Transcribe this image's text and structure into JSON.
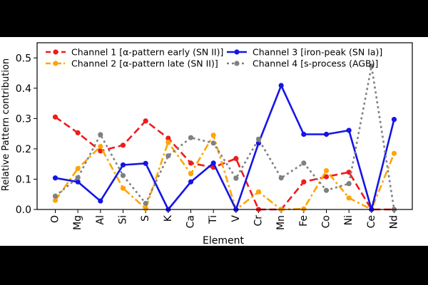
{
  "chart_data": {
    "type": "line",
    "title": "",
    "xlabel": "Element",
    "ylabel": "Relative Pattern contribution",
    "categories": [
      "O",
      "Mg",
      "Al",
      "Si",
      "S",
      "K",
      "Ca",
      "Ti",
      "V",
      "Cr",
      "Mn",
      "Fe",
      "Co",
      "Ni",
      "Ce",
      "Nd"
    ],
    "ylim": [
      0,
      0.55
    ],
    "yticks": [
      "0.0",
      "0.1",
      "0.2",
      "0.3",
      "0.4",
      "0.5"
    ],
    "grid": false,
    "legend_position": "top",
    "series": [
      {
        "name": "Channel 1 [α-pattern early (SN II)]",
        "color": "#ee1c1c",
        "dash": "dashed",
        "values": [
          0.305,
          0.253,
          0.193,
          0.212,
          0.292,
          0.235,
          0.153,
          0.139,
          0.168,
          0.0,
          0.0,
          0.091,
          0.108,
          0.123,
          0.0,
          0.0
        ]
      },
      {
        "name": "Channel 2 [α-pattern late (SN II)]",
        "color": "#ffa500",
        "dash": "dashdot",
        "values": [
          0.03,
          0.135,
          0.208,
          0.07,
          0.003,
          0.222,
          0.118,
          0.245,
          0.0,
          0.058,
          0.0,
          0.002,
          0.128,
          0.038,
          0.0,
          0.185
        ]
      },
      {
        "name": "Channel 3 [iron-peak (SN Ia)]",
        "color": "#1515e5",
        "dash": "solid",
        "values": [
          0.104,
          0.091,
          0.028,
          0.147,
          0.152,
          0.0,
          0.091,
          0.153,
          0.0,
          0.219,
          0.409,
          0.248,
          0.248,
          0.261,
          0.0,
          0.297
        ]
      },
      {
        "name": "Channel 4 [s-process (AGB)]",
        "color": "#808080",
        "dash": "dotted",
        "values": [
          0.044,
          0.105,
          0.247,
          0.112,
          0.02,
          0.177,
          0.237,
          0.219,
          0.103,
          0.232,
          0.104,
          0.153,
          0.063,
          0.085,
          0.473,
          0.0
        ]
      }
    ]
  }
}
